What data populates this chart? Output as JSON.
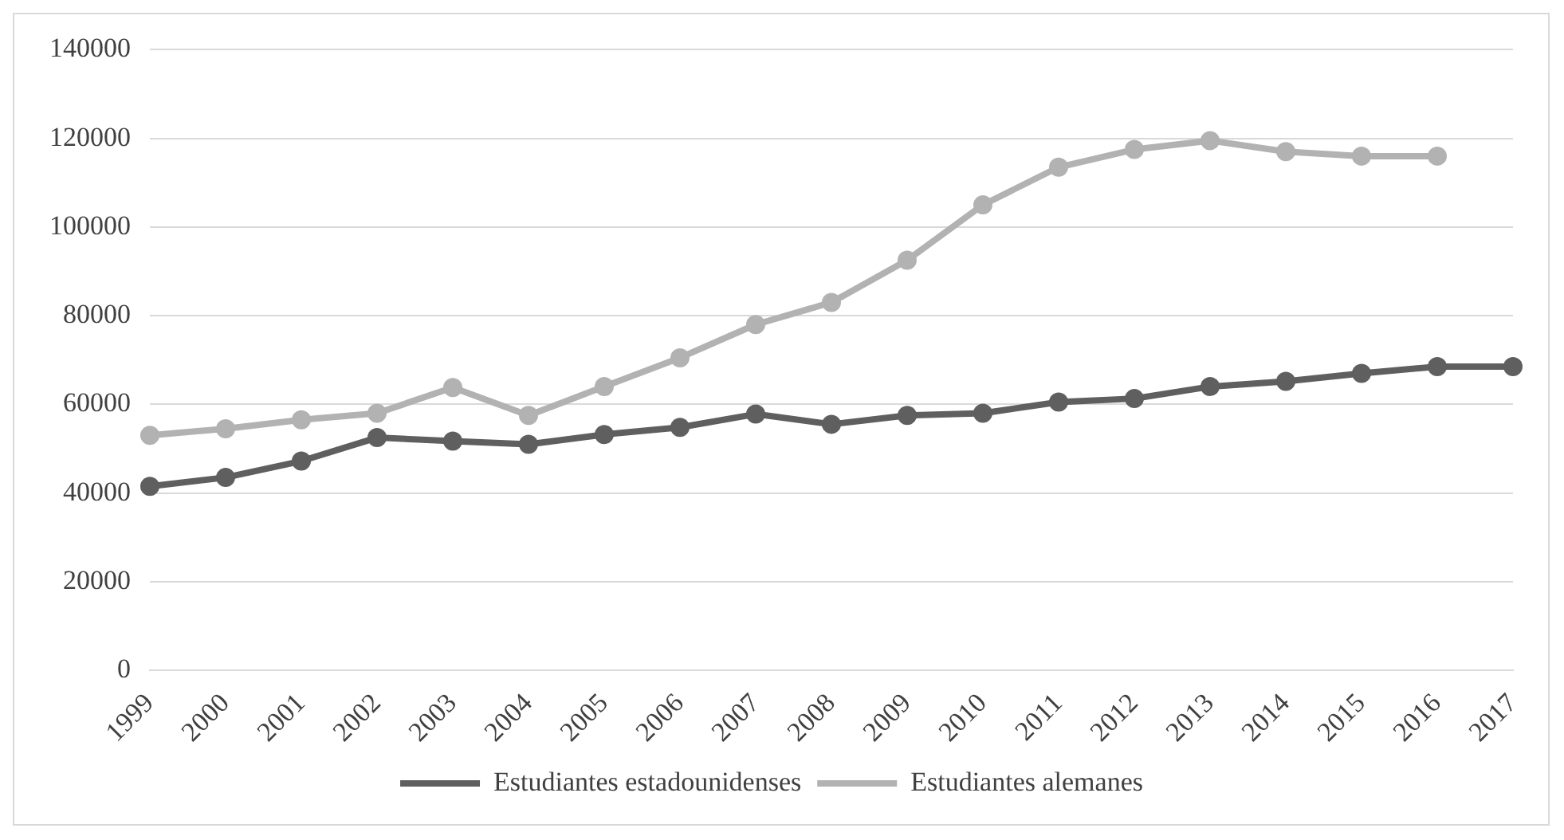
{
  "chart_data": {
    "type": "line",
    "categories": [
      "1999",
      "2000",
      "2001",
      "2002",
      "2003",
      "2004",
      "2005",
      "2006",
      "2007",
      "2008",
      "2009",
      "2010",
      "2011",
      "2012",
      "2013",
      "2014",
      "2015",
      "2016",
      "2017"
    ],
    "series": [
      {
        "name": "Estudiantes estadounidenses",
        "color": "#5f5f5f",
        "values": [
          41500,
          43500,
          47200,
          52500,
          51700,
          51000,
          53200,
          54800,
          57800,
          55500,
          57500,
          58000,
          60500,
          61300,
          64000,
          65200,
          67000,
          68500,
          68500
        ]
      },
      {
        "name": "Estudiantes alemanes",
        "color": "#b2b2b2",
        "values": [
          53000,
          54500,
          56500,
          58000,
          63800,
          57500,
          64000,
          70500,
          78000,
          83000,
          92500,
          105000,
          113500,
          117500,
          119500,
          117000,
          116000,
          116000,
          null
        ]
      }
    ],
    "ylim": [
      0,
      140000
    ],
    "yticks": [
      0,
      20000,
      40000,
      60000,
      80000,
      100000,
      120000,
      140000
    ],
    "grid": "y",
    "legend": "bottom",
    "marker": "circle",
    "line_style": "solid"
  }
}
